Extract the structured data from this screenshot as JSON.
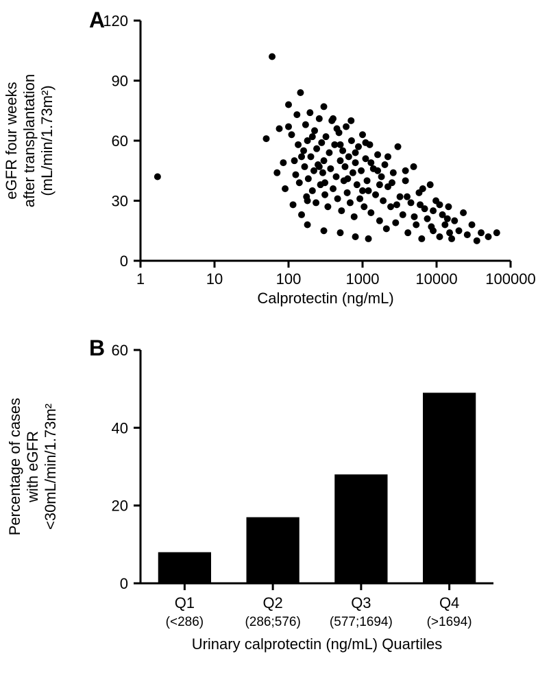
{
  "panelA": {
    "label": "A",
    "type": "scatter",
    "xlabel": "Calprotectin (ng/mL)",
    "ylabel": "eGFR four weeks\nafter transplantation\n(mL/min/1.73m²)",
    "xscale": "log",
    "xmin": 1,
    "xmax": 100000,
    "xticks": [
      1,
      10,
      100,
      1000,
      10000,
      100000
    ],
    "xtick_labels": [
      "1",
      "10",
      "100",
      "1000",
      "10000",
      "100000"
    ],
    "ymin": 0,
    "ymax": 120,
    "yticks": [
      0,
      30,
      60,
      90,
      120
    ],
    "ytick_labels": [
      "0",
      "30",
      "60",
      "90",
      "120"
    ],
    "marker_color": "#000000",
    "marker_radius": 5,
    "axis_color": "#000000",
    "axis_width": 3,
    "tick_len": 10,
    "background": "#ffffff",
    "label_fontsize": 22,
    "tick_fontsize": 22,
    "panel_label_fontsize": 32,
    "points": [
      [
        1.7,
        42
      ],
      [
        50,
        61
      ],
      [
        60,
        102
      ],
      [
        70,
        44
      ],
      [
        75,
        66
      ],
      [
        85,
        49
      ],
      [
        90,
        36
      ],
      [
        100,
        78
      ],
      [
        100,
        67
      ],
      [
        110,
        63
      ],
      [
        115,
        28
      ],
      [
        120,
        50
      ],
      [
        125,
        43
      ],
      [
        130,
        73
      ],
      [
        135,
        58
      ],
      [
        140,
        39
      ],
      [
        145,
        84
      ],
      [
        150,
        23
      ],
      [
        160,
        55
      ],
      [
        165,
        47
      ],
      [
        170,
        68
      ],
      [
        175,
        32
      ],
      [
        180,
        60
      ],
      [
        185,
        41
      ],
      [
        195,
        74
      ],
      [
        200,
        52
      ],
      [
        210,
        35
      ],
      [
        220,
        45
      ],
      [
        225,
        65
      ],
      [
        235,
        29
      ],
      [
        240,
        56
      ],
      [
        250,
        48
      ],
      [
        260,
        71
      ],
      [
        270,
        38
      ],
      [
        280,
        59
      ],
      [
        290,
        44
      ],
      [
        300,
        50
      ],
      [
        310,
        33
      ],
      [
        320,
        62
      ],
      [
        340,
        27
      ],
      [
        355,
        54
      ],
      [
        370,
        46
      ],
      [
        385,
        70
      ],
      [
        400,
        36
      ],
      [
        420,
        58
      ],
      [
        440,
        42
      ],
      [
        460,
        31
      ],
      [
        480,
        64
      ],
      [
        500,
        50
      ],
      [
        520,
        25
      ],
      [
        540,
        55
      ],
      [
        560,
        40
      ],
      [
        580,
        47
      ],
      [
        600,
        67
      ],
      [
        620,
        34
      ],
      [
        650,
        52
      ],
      [
        680,
        29
      ],
      [
        710,
        60
      ],
      [
        740,
        44
      ],
      [
        770,
        22
      ],
      [
        800,
        49
      ],
      [
        840,
        38
      ],
      [
        880,
        57
      ],
      [
        920,
        31
      ],
      [
        960,
        45
      ],
      [
        1000,
        63
      ],
      [
        1050,
        27
      ],
      [
        1100,
        51
      ],
      [
        1150,
        40
      ],
      [
        1200,
        35
      ],
      [
        1250,
        58
      ],
      [
        1300,
        24
      ],
      [
        1400,
        46
      ],
      [
        1500,
        33
      ],
      [
        1600,
        53
      ],
      [
        1700,
        20
      ],
      [
        1800,
        42
      ],
      [
        1900,
        30
      ],
      [
        2000,
        48
      ],
      [
        2100,
        16
      ],
      [
        2200,
        37
      ],
      [
        2400,
        27
      ],
      [
        2600,
        44
      ],
      [
        2800,
        19
      ],
      [
        3000,
        57
      ],
      [
        3200,
        32
      ],
      [
        3500,
        23
      ],
      [
        3800,
        40
      ],
      [
        4100,
        14
      ],
      [
        4500,
        29
      ],
      [
        4900,
        47
      ],
      [
        5300,
        18
      ],
      [
        5800,
        34
      ],
      [
        6300,
        11
      ],
      [
        6900,
        26
      ],
      [
        7500,
        21
      ],
      [
        8200,
        38
      ],
      [
        9000,
        15
      ],
      [
        9800,
        30
      ],
      [
        11000,
        12
      ],
      [
        12000,
        23
      ],
      [
        13000,
        18
      ],
      [
        14500,
        27
      ],
      [
        16000,
        11
      ],
      [
        17500,
        20
      ],
      [
        20000,
        15
      ],
      [
        23000,
        24
      ],
      [
        26000,
        13
      ],
      [
        30000,
        18
      ],
      [
        35000,
        10
      ],
      [
        40000,
        14
      ],
      [
        50000,
        12
      ],
      [
        65000,
        14
      ],
      [
        150,
        52
      ],
      [
        180,
        30
      ],
      [
        210,
        62
      ],
      [
        260,
        47
      ],
      [
        310,
        39
      ],
      [
        400,
        71
      ],
      [
        500,
        58
      ],
      [
        630,
        41
      ],
      [
        800,
        54
      ],
      [
        1000,
        35
      ],
      [
        1300,
        49
      ],
      [
        1700,
        38
      ],
      [
        2200,
        52
      ],
      [
        2900,
        28
      ],
      [
        3800,
        45
      ],
      [
        5000,
        22
      ],
      [
        6500,
        36
      ],
      [
        8500,
        17
      ],
      [
        11000,
        28
      ],
      [
        15000,
        14
      ],
      [
        300,
        77
      ],
      [
        450,
        66
      ],
      [
        700,
        70
      ],
      [
        1100,
        59
      ],
      [
        1600,
        45
      ],
      [
        2500,
        39
      ],
      [
        4000,
        32
      ],
      [
        6000,
        28
      ],
      [
        9000,
        25
      ],
      [
        14000,
        21
      ],
      [
        180,
        18
      ],
      [
        300,
        15
      ],
      [
        500,
        14
      ],
      [
        800,
        12
      ],
      [
        1200,
        11
      ]
    ]
  },
  "panelB": {
    "label": "B",
    "type": "bar",
    "xlabel": "Urinary calprotectin (ng/mL) Quartiles",
    "ylabel": "Percentage of cases\nwith eGFR\n<30mL/min/1.73m²",
    "ymin": 0,
    "ymax": 60,
    "yticks": [
      0,
      20,
      40,
      60
    ],
    "ytick_labels": [
      "0",
      "20",
      "40",
      "60"
    ],
    "categories": [
      "Q1",
      "Q2",
      "Q3",
      "Q4"
    ],
    "category_sub": [
      "(<286)",
      "(286;576)",
      "(577;1694)",
      "(>1694)"
    ],
    "values": [
      8,
      17,
      28,
      49
    ],
    "bar_color": "#000000",
    "bar_width": 0.6,
    "axis_color": "#000000",
    "axis_width": 3,
    "tick_len": 10,
    "background": "#ffffff",
    "label_fontsize": 22,
    "tick_fontsize": 22,
    "panel_label_fontsize": 32
  }
}
